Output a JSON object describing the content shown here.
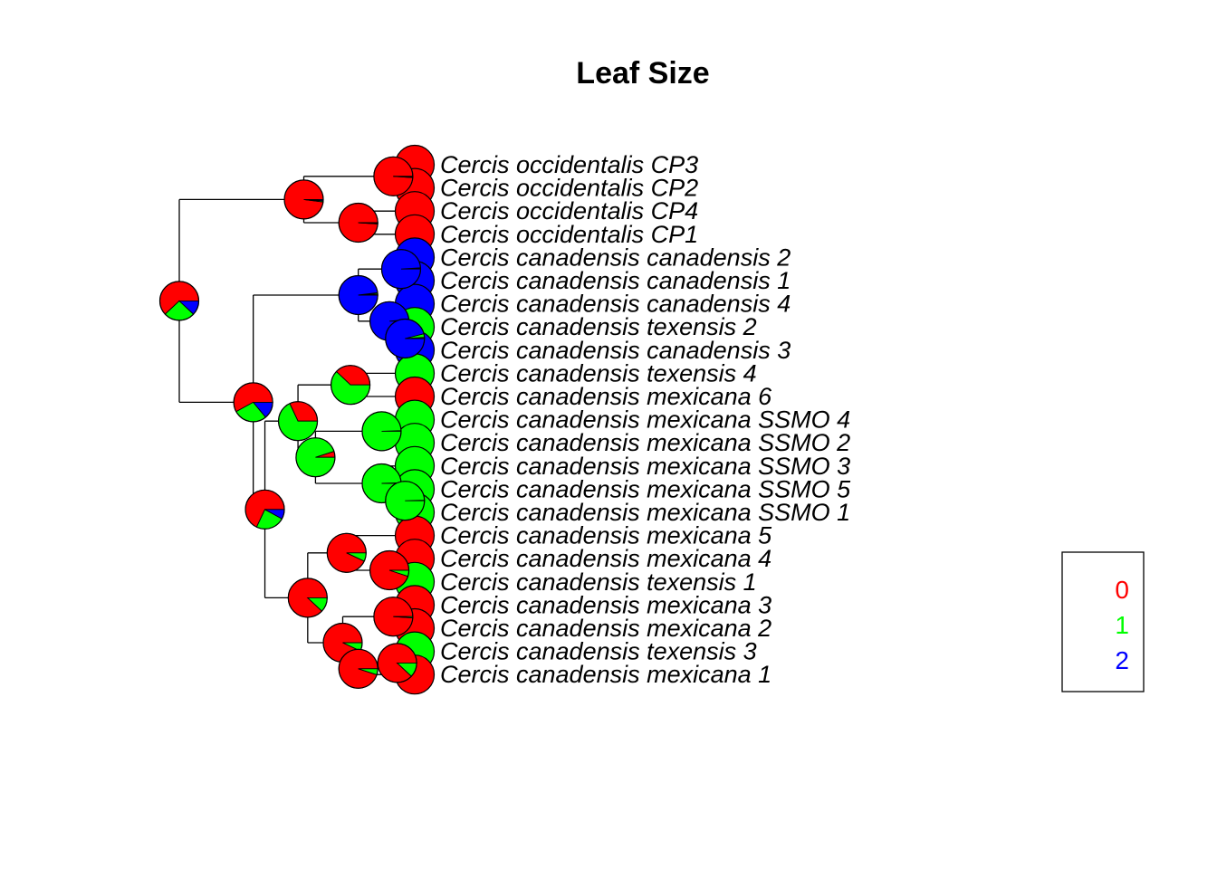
{
  "title": "Leaf Size",
  "state_colors": {
    "0": "#ff0000",
    "1": "#00ff00",
    "2": "#0000ff"
  },
  "legend": [
    {
      "label": "0",
      "color": "#ff0000"
    },
    {
      "label": "1",
      "color": "#00ff00"
    },
    {
      "label": "2",
      "color": "#0000ff"
    }
  ],
  "tips": [
    {
      "label": "Cercis occidentalis CP3",
      "state": "0"
    },
    {
      "label": "Cercis occidentalis CP2",
      "state": "0"
    },
    {
      "label": "Cercis occidentalis CP4",
      "state": "0"
    },
    {
      "label": "Cercis occidentalis CP1",
      "state": "0"
    },
    {
      "label": "Cercis canadensis canadensis 2",
      "state": "2"
    },
    {
      "label": "Cercis canadensis canadensis 1",
      "state": "2"
    },
    {
      "label": "Cercis canadensis canadensis 4",
      "state": "2"
    },
    {
      "label": "Cercis canadensis texensis 2",
      "state": "1"
    },
    {
      "label": "Cercis canadensis canadensis 3",
      "state": "2"
    },
    {
      "label": "Cercis canadensis texensis 4",
      "state": "1"
    },
    {
      "label": "Cercis canadensis mexicana 6",
      "state": "0"
    },
    {
      "label": "Cercis canadensis mexicana SSMO 4",
      "state": "1"
    },
    {
      "label": "Cercis canadensis mexicana SSMO 2",
      "state": "1"
    },
    {
      "label": "Cercis canadensis mexicana SSMO 3",
      "state": "1"
    },
    {
      "label": "Cercis canadensis mexicana SSMO 5",
      "state": "1"
    },
    {
      "label": "Cercis canadensis mexicana SSMO 1",
      "state": "1"
    },
    {
      "label": "Cercis canadensis mexicana 5",
      "state": "0"
    },
    {
      "label": "Cercis canadensis mexicana 4",
      "state": "0"
    },
    {
      "label": "Cercis canadensis texensis 1",
      "state": "1"
    },
    {
      "label": "Cercis canadensis mexicana 3",
      "state": "0"
    },
    {
      "label": "Cercis canadensis mexicana 2",
      "state": "0"
    },
    {
      "label": "Cercis canadensis texensis 3",
      "state": "1"
    },
    {
      "label": "Cercis canadensis mexicana 1",
      "state": "0"
    }
  ],
  "nodes": [
    {
      "id": "root",
      "depth": 0,
      "children": [
        "n_occ",
        "n_can"
      ],
      "probs": [
        0.62,
        0.26,
        0.12
      ]
    },
    {
      "id": "n_occ",
      "depth": 3.2,
      "children": [
        "n_occ_a",
        "n_occ_b"
      ],
      "probs": [
        0.98,
        0.01,
        0.01
      ]
    },
    {
      "id": "n_occ_a",
      "depth": 5.5,
      "children": [
        0,
        1
      ],
      "probs": [
        0.99,
        0.005,
        0.005
      ]
    },
    {
      "id": "n_occ_b",
      "depth": 4.6,
      "children": [
        2,
        3
      ],
      "probs": [
        0.99,
        0.005,
        0.005
      ]
    },
    {
      "id": "n_can",
      "depth": 1.9,
      "children": [
        "n_cc",
        "n_mex"
      ],
      "probs": [
        0.58,
        0.28,
        0.14
      ]
    },
    {
      "id": "n_cc",
      "depth": 4.6,
      "children": [
        "n_cc_a",
        "n_cc_b"
      ],
      "probs": [
        0.01,
        0.01,
        0.98
      ]
    },
    {
      "id": "n_cc_a",
      "depth": 5.7,
      "children": [
        4,
        5
      ],
      "probs": [
        0.005,
        0.005,
        0.99
      ]
    },
    {
      "id": "n_cc_b",
      "depth": 5.4,
      "children": [
        6,
        "n_cc_c"
      ],
      "probs": [
        0.005,
        0.01,
        0.985
      ]
    },
    {
      "id": "n_cc_c",
      "depth": 5.8,
      "children": [
        7,
        8
      ],
      "probs": [
        0.01,
        0.03,
        0.96
      ]
    },
    {
      "id": "n_mex",
      "depth": 2.2,
      "children": [
        "n_mexA",
        "n_mexB"
      ],
      "probs": [
        0.68,
        0.24,
        0.08
      ]
    },
    {
      "id": "n_mexA",
      "depth": 3.05,
      "children": [
        "n_t4m6",
        "n_ssmo"
      ],
      "probs": [
        0.32,
        0.68,
        0.0
      ]
    },
    {
      "id": "n_t4m6",
      "depth": 4.4,
      "children": [
        9,
        10
      ],
      "probs": [
        0.38,
        0.62,
        0.0
      ]
    },
    {
      "id": "n_ssmo",
      "depth": 3.5,
      "children": [
        "n_ssmo_a",
        "n_ssmo_b"
      ],
      "probs": [
        0.05,
        0.95,
        0.0
      ]
    },
    {
      "id": "n_ssmo_a",
      "depth": 5.2,
      "children": [
        11,
        12
      ],
      "probs": [
        0.005,
        0.995,
        0.0
      ]
    },
    {
      "id": "n_ssmo_b",
      "depth": 5.2,
      "children": [
        13,
        "n_ssmo_c"
      ],
      "probs": [
        0.005,
        0.995,
        0.0
      ]
    },
    {
      "id": "n_ssmo_c",
      "depth": 5.8,
      "children": [
        14,
        15
      ],
      "probs": [
        0.005,
        0.995,
        0.0
      ]
    },
    {
      "id": "n_mexB",
      "depth": 3.3,
      "children": [
        "n_m5",
        "n_mB2"
      ],
      "probs": [
        0.88,
        0.12,
        0.0
      ]
    },
    {
      "id": "n_m5",
      "depth": 4.3,
      "children": [
        16,
        "n_mB3"
      ],
      "probs": [
        0.93,
        0.07,
        0.0
      ]
    },
    {
      "id": "n_mB3",
      "depth": 5.4,
      "children": [
        17,
        18
      ],
      "probs": [
        0.95,
        0.05,
        0.0
      ]
    },
    {
      "id": "n_mB2",
      "depth": 4.2,
      "children": [
        "n_mB4",
        "n_mB5"
      ],
      "probs": [
        0.93,
        0.07,
        0.0
      ]
    },
    {
      "id": "n_mB4",
      "depth": 5.5,
      "children": [
        19,
        20
      ],
      "probs": [
        0.99,
        0.01,
        0.0
      ]
    },
    {
      "id": "n_mB5",
      "depth": 4.6,
      "children": [
        "n_mB6",
        22
      ],
      "probs": [
        0.95,
        0.05,
        0.0
      ]
    },
    {
      "id": "n_mB6",
      "depth": 5.6,
      "children": [
        21,
        22
      ],
      "probs": [
        0.88,
        0.12,
        0.0
      ]
    }
  ]
}
